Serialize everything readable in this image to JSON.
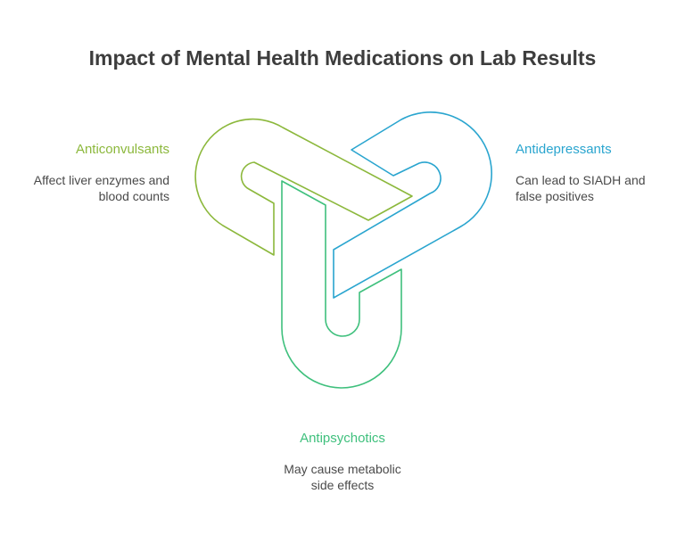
{
  "title": "Impact of Mental Health Medications on Lab Results",
  "items": [
    {
      "heading": "Anticonvulsants",
      "description_line1": "Affect liver enzymes and",
      "description_line2": "blood counts",
      "color": "#8cb83c"
    },
    {
      "heading": "Antidepressants",
      "description_line1": "Can lead to SIADH and",
      "description_line2": "false positives",
      "color": "#2aa5cf"
    },
    {
      "heading": "Antipsychotics",
      "description_line1": "May cause metabolic",
      "description_line2": "side effects",
      "color": "#3fc07d"
    }
  ]
}
